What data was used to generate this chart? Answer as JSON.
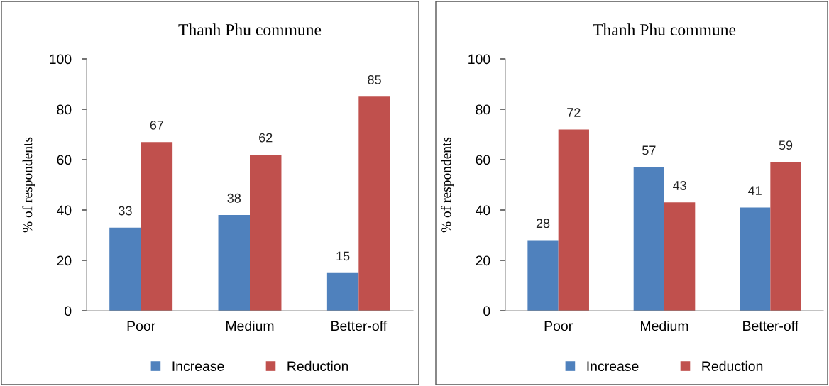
{
  "chart_data": [
    {
      "type": "bar",
      "title": "Thanh Phu commune",
      "ylabel": "% of respondents",
      "categories": [
        "Poor",
        "Medium",
        "Better-off"
      ],
      "series": [
        {
          "name": "Increase",
          "color": "#4f81bd",
          "values": [
            33,
            38,
            15
          ]
        },
        {
          "name": "Reduction",
          "color": "#c0504d",
          "values": [
            67,
            62,
            85
          ]
        }
      ],
      "ylim": [
        0,
        100
      ],
      "yticks": [
        0,
        20,
        40,
        60,
        80,
        100
      ],
      "grid": false,
      "legend": "bottom",
      "data_labels": true
    },
    {
      "type": "bar",
      "title": "Thanh Phu commune",
      "ylabel": "% of respondents",
      "categories": [
        "Poor",
        "Medium",
        "Better-off"
      ],
      "series": [
        {
          "name": "Increase",
          "color": "#4f81bd",
          "values": [
            28,
            57,
            41
          ]
        },
        {
          "name": "Reduction",
          "color": "#c0504d",
          "values": [
            72,
            43,
            59
          ]
        }
      ],
      "ylim": [
        0,
        100
      ],
      "yticks": [
        0,
        20,
        40,
        60,
        80,
        100
      ],
      "grid": false,
      "legend": "bottom",
      "data_labels": true
    }
  ]
}
